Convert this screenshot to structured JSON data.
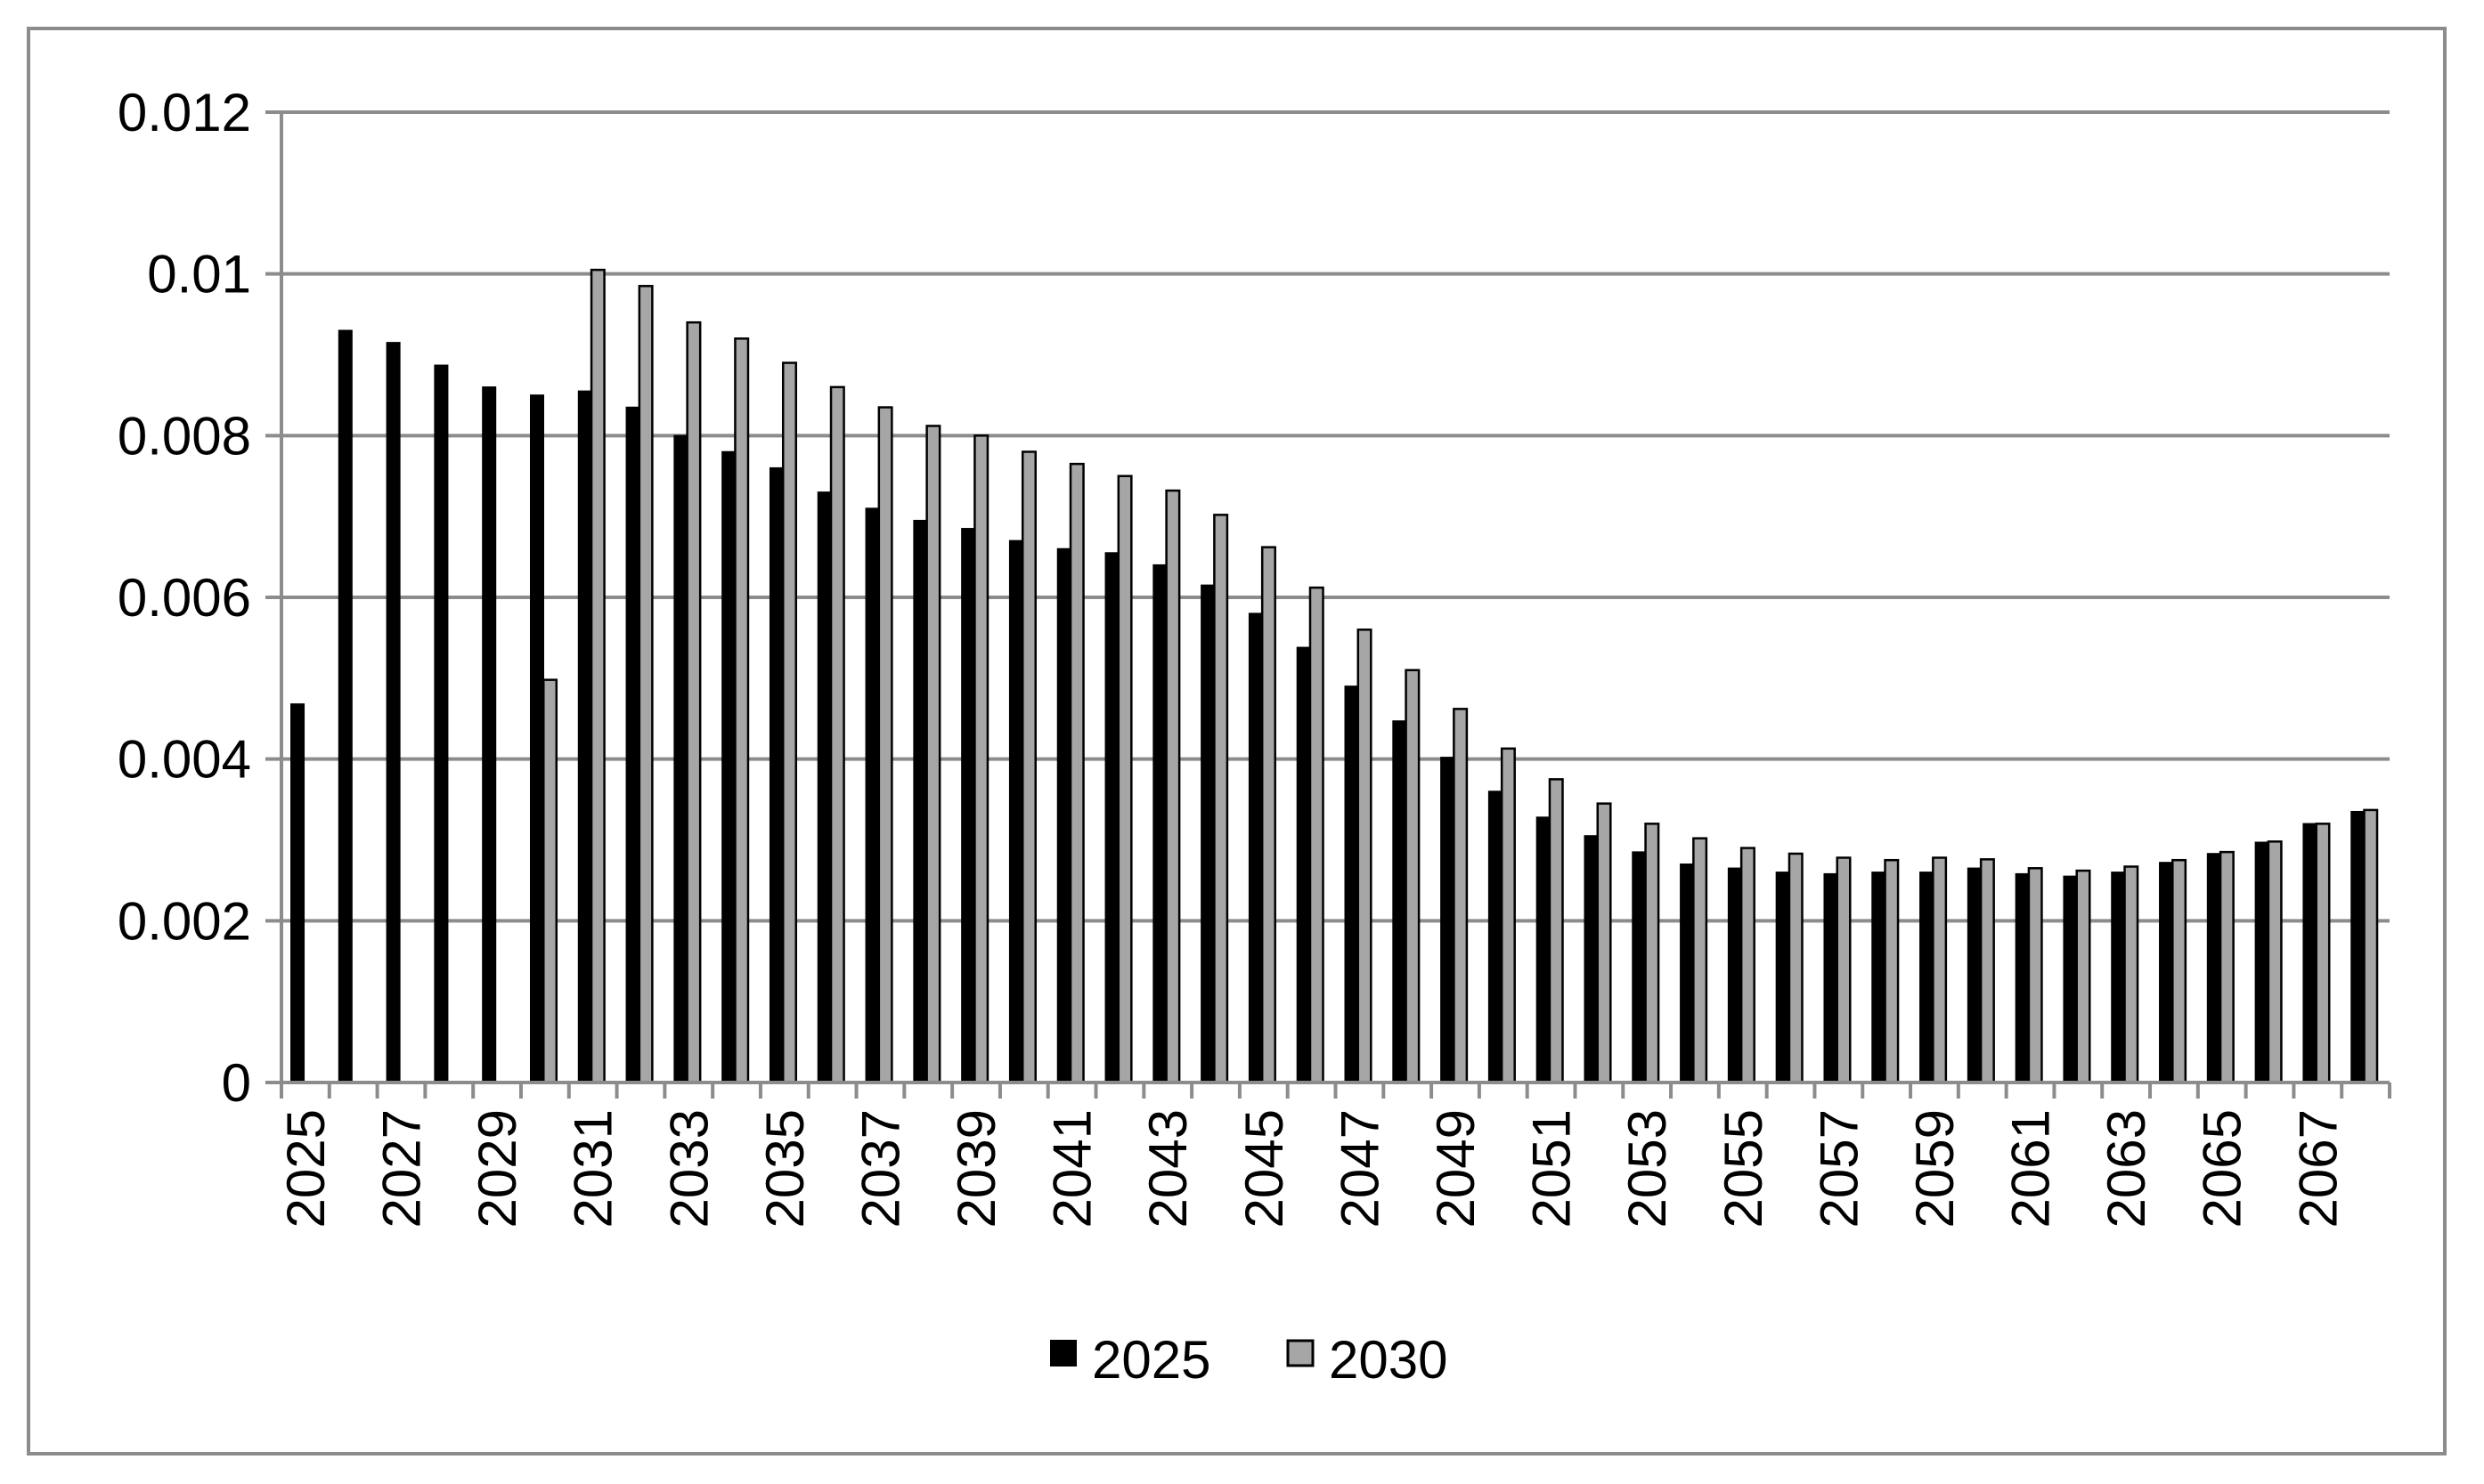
{
  "chart_data": {
    "type": "bar",
    "title": "",
    "xlabel": "",
    "ylabel": "",
    "ylim": [
      0,
      0.012
    ],
    "y_ticks": [
      "0",
      "0.002",
      "0.004",
      "0.006",
      "0.008",
      "0.01",
      "0.012"
    ],
    "y_tick_values": [
      0,
      0.002,
      0.004,
      0.006,
      0.008,
      0.01,
      0.012
    ],
    "grid": "horizontal",
    "legend_position": "bottom",
    "categories": [
      "2025",
      "2026",
      "2027",
      "2028",
      "2029",
      "2030",
      "2031",
      "2032",
      "2033",
      "2034",
      "2035",
      "2036",
      "2037",
      "2038",
      "2039",
      "2040",
      "2041",
      "2042",
      "2043",
      "2044",
      "2045",
      "2046",
      "2047",
      "2048",
      "2049",
      "2050",
      "2051",
      "2052",
      "2053",
      "2054",
      "2055",
      "2056",
      "2057",
      "2058",
      "2059",
      "2060",
      "2061",
      "2062",
      "2063",
      "2064",
      "2065",
      "2066",
      "2067",
      "2068"
    ],
    "x_tick_labels": [
      "2025",
      "2027",
      "2029",
      "2031",
      "2033",
      "2035",
      "2037",
      "2039",
      "2041",
      "2043",
      "2045",
      "2047",
      "2049",
      "2051",
      "2053",
      "2055",
      "2057",
      "2059",
      "2061",
      "2063",
      "2065",
      "2067"
    ],
    "series": [
      {
        "name": "2025",
        "color": "#000000",
        "values": [
          0.00468,
          0.0093,
          0.00915,
          0.00887,
          0.0086,
          0.0085,
          0.00855,
          0.00835,
          0.008,
          0.0078,
          0.0076,
          0.0073,
          0.0071,
          0.00695,
          0.00685,
          0.0067,
          0.0066,
          0.00655,
          0.0064,
          0.00615,
          0.0058,
          0.00538,
          0.0049,
          0.00447,
          0.00402,
          0.0036,
          0.00328,
          0.00305,
          0.00285,
          0.0027,
          0.00265,
          0.0026,
          0.00258,
          0.0026,
          0.0026,
          0.00265,
          0.00258,
          0.00255,
          0.0026,
          0.00272,
          0.00283,
          0.00297,
          0.0032,
          0.00335
        ]
      },
      {
        "name": "2030",
        "color": "#a6a6a6",
        "values": [
          null,
          null,
          null,
          null,
          null,
          0.00498,
          0.01005,
          0.00985,
          0.0094,
          0.0092,
          0.0089,
          0.0086,
          0.00835,
          0.00812,
          0.008,
          0.0078,
          0.00765,
          0.0075,
          0.00732,
          0.00702,
          0.00662,
          0.00612,
          0.0056,
          0.0051,
          0.00462,
          0.00413,
          0.00375,
          0.00345,
          0.0032,
          0.00302,
          0.0029,
          0.00283,
          0.00278,
          0.00275,
          0.00278,
          0.00276,
          0.00265,
          0.00262,
          0.00267,
          0.00275,
          0.00285,
          0.00298,
          0.0032,
          0.00337
        ]
      }
    ]
  }
}
